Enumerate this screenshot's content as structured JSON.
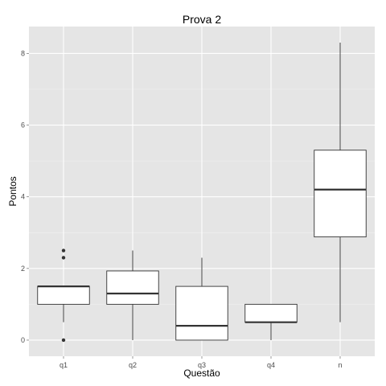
{
  "chart_data": {
    "type": "boxplot",
    "title": "Prova 2",
    "xlabel": "Questão",
    "ylabel": "Pontos",
    "ylim": [
      -0.45,
      8.75
    ],
    "yticks": [
      0,
      2,
      4,
      6,
      8
    ],
    "grid": true,
    "categories": [
      "q1",
      "q2",
      "q3",
      "q4",
      "n"
    ],
    "boxes": [
      {
        "category": "q1",
        "whisker_low": 0.5,
        "q1": 1.0,
        "median": 1.5,
        "q3": 1.5,
        "whisker_high": 1.5,
        "outliers": [
          0.0,
          2.3,
          2.5
        ]
      },
      {
        "category": "q2",
        "whisker_low": 0.0,
        "q1": 1.0,
        "median": 1.3,
        "q3": 1.93,
        "whisker_high": 2.5,
        "outliers": []
      },
      {
        "category": "q3",
        "whisker_low": 0.0,
        "q1": 0.0,
        "median": 0.4,
        "q3": 1.5,
        "whisker_high": 2.3,
        "outliers": []
      },
      {
        "category": "q4",
        "whisker_low": 0.0,
        "q1": 0.5,
        "median": 0.5,
        "q3": 1.0,
        "whisker_high": 1.0,
        "outliers": []
      },
      {
        "category": "n",
        "whisker_low": 0.5,
        "q1": 2.88,
        "median": 4.2,
        "q3": 5.3,
        "whisker_high": 8.3,
        "outliers": []
      }
    ],
    "colors": {
      "panel_background": "#e5e5e5",
      "grid_major": "#ffffff",
      "grid_minor": "#f2f2f2",
      "box_fill": "#ffffff",
      "box_stroke": "#333333"
    }
  }
}
